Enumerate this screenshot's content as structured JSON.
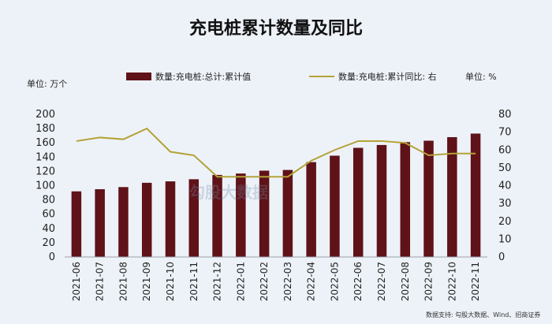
{
  "title": "充电桩累计数量及同比",
  "unit_left": "单位: 万个",
  "unit_right": "单位: %",
  "legend_bar": "数量:充电桩:总计:累计值",
  "legend_line": "数量:充电桩:累计同比: 右",
  "source": "数据支持: 勾股大数据、Wind、招商证券",
  "watermark": "勾股大数据",
  "colors": {
    "bar": "#5f1218",
    "line": "#b4a238",
    "background": "#edf2f8"
  },
  "chart_data": {
    "type": "bar",
    "title": "充电桩累计数量及同比",
    "categories": [
      "2021-06",
      "2021-07",
      "2021-08",
      "2021-09",
      "2021-10",
      "2021-11",
      "2021-12",
      "2022-01",
      "2022-02",
      "2022-03",
      "2022-04",
      "2022-05",
      "2022-06",
      "2022-07",
      "2022-08",
      "2022-09",
      "2022-10",
      "2022-11"
    ],
    "series": [
      {
        "name": "数量:充电桩:总计:累计值",
        "type": "bar",
        "axis": "left",
        "values": [
          92,
          95,
          98,
          104,
          106,
          109,
          115,
          117,
          121,
          122,
          133,
          142,
          153,
          157,
          161,
          163,
          168,
          173
        ]
      },
      {
        "name": "数量:充电桩:累计同比: 右",
        "type": "line",
        "axis": "right",
        "values": [
          65,
          67,
          66,
          72,
          59,
          57,
          45,
          45,
          45,
          45,
          54,
          60,
          65,
          65,
          64,
          57,
          58,
          58
        ]
      }
    ],
    "ylim_left": [
      0,
      200
    ],
    "yticks_left": [
      0,
      20,
      40,
      60,
      80,
      100,
      120,
      140,
      160,
      180,
      200
    ],
    "ylim_right": [
      0,
      80
    ],
    "yticks_right": [
      0,
      10,
      20,
      30,
      40,
      50,
      60,
      70,
      80
    ],
    "grid": false,
    "legend": "top"
  }
}
